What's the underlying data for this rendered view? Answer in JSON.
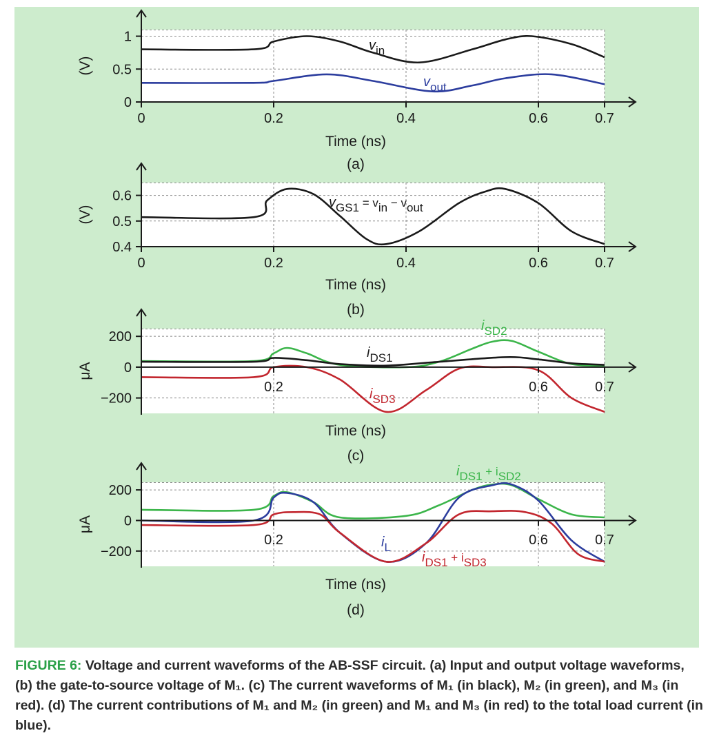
{
  "colors": {
    "panel_bg": "#cdeccd",
    "black": "#1a1a1a",
    "blue": "#2c3d9e",
    "green": "#3bb54a",
    "red": "#c2262e",
    "caption_accent": "#2aa048"
  },
  "caption": {
    "label": "FIGURE 6:",
    "text": "Voltage and current waveforms of the AB-SSF circuit. (a) Input and output voltage waveforms, (b) the gate-to-source voltage of M₁. (c) The current waveforms of M₁ (in black), M₂ (in green), and M₃ (in red). (d) The current contributions of M₁ and M₂ (in green) and M₁ and M₃ (in red) to the total load current (in blue)."
  },
  "chart_data": [
    {
      "id": "a",
      "type": "line",
      "panel_label": "(a)",
      "xlabel": "Time (ns)",
      "ylabel": "(V)",
      "xlim": [
        0,
        0.7
      ],
      "ylim": [
        0,
        1.1
      ],
      "xticks": [
        "0",
        "0.2",
        "0.4",
        "0.6",
        "0.7"
      ],
      "yticks": [
        "0",
        "0.5",
        "1"
      ],
      "grid": "dashed at ticks",
      "series": [
        {
          "name": "v_in",
          "label_main": "v",
          "label_sub": "in",
          "color": "#1a1a1a",
          "x": [
            0,
            0.17,
            0.2,
            0.25,
            0.3,
            0.35,
            0.42,
            0.5,
            0.55,
            0.59,
            0.65,
            0.7
          ],
          "y": [
            0.8,
            0.8,
            0.92,
            1.0,
            0.92,
            0.75,
            0.6,
            0.8,
            0.95,
            1.0,
            0.88,
            0.68
          ]
        },
        {
          "name": "v_out",
          "label_main": "v",
          "label_sub": "out",
          "color": "#2c3d9e",
          "x": [
            0,
            0.17,
            0.2,
            0.28,
            0.35,
            0.44,
            0.5,
            0.55,
            0.62,
            0.7
          ],
          "y": [
            0.29,
            0.29,
            0.32,
            0.42,
            0.32,
            0.16,
            0.25,
            0.36,
            0.42,
            0.27
          ]
        }
      ]
    },
    {
      "id": "b",
      "type": "line",
      "panel_label": "(b)",
      "xlabel": "Time (ns)",
      "ylabel": "(V)",
      "xlim": [
        0,
        0.7
      ],
      "ylim": [
        0.4,
        0.65
      ],
      "xticks": [
        "0",
        "0.2",
        "0.4",
        "0.6",
        "0.7"
      ],
      "yticks": [
        "0.4",
        "0.5",
        "0.6"
      ],
      "grid": "dashed at ticks",
      "series": [
        {
          "name": "v_GS1",
          "label_main": "v",
          "label_sub": "GS1",
          "label_rest": " = v",
          "label_sub2": "in",
          "label_rest2": " − v",
          "label_sub3": "out",
          "color": "#1a1a1a",
          "x": [
            0,
            0.17,
            0.19,
            0.22,
            0.26,
            0.3,
            0.34,
            0.37,
            0.42,
            0.48,
            0.52,
            0.55,
            0.6,
            0.65,
            0.7
          ],
          "y": [
            0.515,
            0.515,
            0.58,
            0.625,
            0.605,
            0.52,
            0.43,
            0.41,
            0.46,
            0.57,
            0.615,
            0.625,
            0.57,
            0.46,
            0.41
          ]
        }
      ]
    },
    {
      "id": "c",
      "type": "line",
      "panel_label": "(c)",
      "xlabel": "Time (ns)",
      "ylabel": "μA",
      "xlim": [
        0,
        0.7
      ],
      "ylim": [
        -300,
        250
      ],
      "xticks": [
        "0.2",
        "0.6",
        "0.7"
      ],
      "yticks": [
        "−200",
        "0",
        "200"
      ],
      "grid": "dashed at ticks",
      "series": [
        {
          "name": "i_SD2",
          "label_main": "i",
          "label_sub": "SD2",
          "color": "#3bb54a",
          "x": [
            0,
            0.17,
            0.2,
            0.22,
            0.25,
            0.3,
            0.4,
            0.45,
            0.5,
            0.53,
            0.56,
            0.6,
            0.65,
            0.7
          ],
          "y": [
            40,
            40,
            90,
            125,
            90,
            15,
            0,
            35,
            120,
            165,
            170,
            100,
            20,
            10
          ]
        },
        {
          "name": "i_DS1",
          "label_main": "i",
          "label_sub": "DS1",
          "color": "#1a1a1a",
          "x": [
            0,
            0.17,
            0.2,
            0.25,
            0.3,
            0.37,
            0.45,
            0.55,
            0.6,
            0.65,
            0.7
          ],
          "y": [
            35,
            35,
            60,
            45,
            20,
            10,
            35,
            65,
            50,
            25,
            15
          ]
        },
        {
          "name": "i_SD3",
          "label_main": "i",
          "label_sub": "SD3",
          "color": "#c2262e",
          "x": [
            0,
            0.17,
            0.2,
            0.25,
            0.3,
            0.37,
            0.43,
            0.48,
            0.53,
            0.6,
            0.65,
            0.7
          ],
          "y": [
            -65,
            -65,
            0,
            0,
            -80,
            -290,
            -150,
            -10,
            0,
            -20,
            -200,
            -290
          ]
        }
      ]
    },
    {
      "id": "d",
      "type": "line",
      "panel_label": "(d)",
      "xlabel": "Time (ns)",
      "ylabel": "μA",
      "xlim": [
        0,
        0.7
      ],
      "ylim": [
        -300,
        250
      ],
      "xticks": [
        "0.2",
        "0.6",
        "0.7"
      ],
      "yticks": [
        "−200",
        "0",
        "200"
      ],
      "grid": "dashed at ticks",
      "series": [
        {
          "name": "i_DS1 + i_SD2",
          "label_main": "i",
          "label_sub": "DS1",
          "label_rest": " + i",
          "label_sub2": "SD2",
          "color": "#3bb54a",
          "x": [
            0,
            0.17,
            0.2,
            0.22,
            0.26,
            0.3,
            0.4,
            0.45,
            0.5,
            0.53,
            0.56,
            0.6,
            0.65,
            0.7
          ],
          "y": [
            70,
            70,
            160,
            185,
            120,
            20,
            30,
            100,
            200,
            235,
            230,
            140,
            40,
            20
          ]
        },
        {
          "name": "i_L",
          "label_main": "i",
          "label_sub": "L",
          "color": "#2c3d9e",
          "x": [
            0,
            0.17,
            0.2,
            0.22,
            0.26,
            0.3,
            0.37,
            0.43,
            0.48,
            0.53,
            0.56,
            0.6,
            0.65,
            0.7
          ],
          "y": [
            0,
            0,
            150,
            180,
            120,
            -80,
            -270,
            -150,
            150,
            230,
            235,
            130,
            -130,
            -270
          ]
        },
        {
          "name": "i_DS1 + i_SD3",
          "label_main": "i",
          "label_sub": "DS1",
          "label_rest": " + i",
          "label_sub2": "SD3",
          "color": "#c2262e",
          "x": [
            0,
            0.17,
            0.2,
            0.23,
            0.27,
            0.3,
            0.37,
            0.43,
            0.48,
            0.53,
            0.58,
            0.62,
            0.66,
            0.7
          ],
          "y": [
            -30,
            -30,
            40,
            55,
            40,
            -80,
            -270,
            -150,
            40,
            60,
            55,
            -20,
            -220,
            -270
          ]
        }
      ]
    }
  ]
}
